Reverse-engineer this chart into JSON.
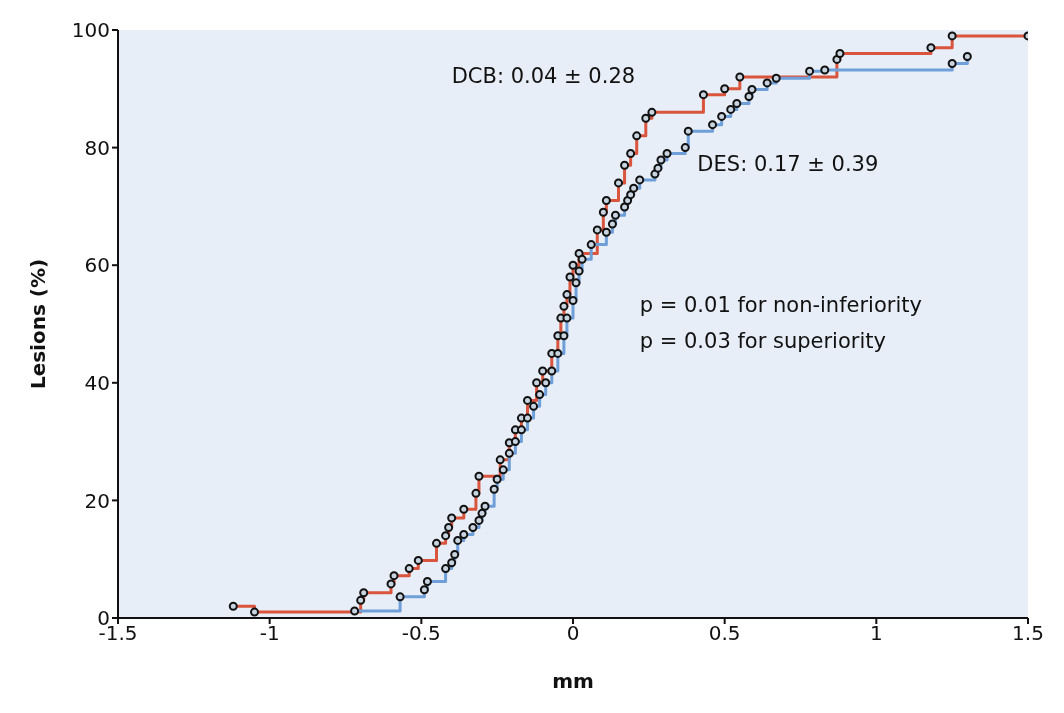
{
  "chart_data": {
    "type": "step",
    "xlabel": "mm",
    "ylabel": "Lesions (%)",
    "xlim": [
      -1.5,
      1.5
    ],
    "xticks": [
      -1.5,
      -1,
      -0.5,
      0,
      0.5,
      1,
      1.5
    ],
    "ylim": [
      0,
      100
    ],
    "yticks": [
      0,
      20,
      40,
      60,
      80,
      100
    ],
    "marker": "circle",
    "line_style": "solid",
    "annotations": [
      "DCB: 0.04 ± 0.28",
      "DES: 0.17 ± 0.39",
      "p = 0.01 for non-inferiority",
      "p = 0.03 for superiority"
    ],
    "series": [
      {
        "color": "#d9553d",
        "x": [
          -1.12,
          -1.05,
          -0.7,
          -0.69,
          -0.6,
          -0.59,
          -0.54,
          -0.51,
          -0.45,
          -0.42,
          -0.41,
          -0.4,
          -0.36,
          -0.32,
          -0.31,
          -0.24,
          -0.21,
          -0.19,
          -0.17,
          -0.15,
          -0.12,
          -0.1,
          -0.07,
          -0.05,
          -0.04,
          -0.03,
          -0.02,
          -0.01,
          0,
          0.02,
          0.08,
          0.1,
          0.11,
          0.15,
          0.17,
          0.19,
          0.21,
          0.24,
          0.26,
          0.43,
          0.5,
          0.55,
          0.87,
          0.88,
          1.18,
          1.25,
          1.5
        ],
        "values": [
          2,
          1,
          3,
          4.3,
          5.8,
          7.2,
          8.4,
          9.8,
          12.7,
          14,
          15.4,
          17,
          18.5,
          21.2,
          24.1,
          26.9,
          29.8,
          32,
          34,
          37,
          40,
          42,
          45,
          48,
          51,
          53,
          55,
          58,
          60,
          62,
          66,
          69,
          71,
          74,
          77,
          79,
          82,
          85,
          86,
          89,
          90,
          92,
          95,
          96,
          97,
          99,
          99
        ]
      },
      {
        "color": "#6f9fd8",
        "x": [
          -0.72,
          -0.57,
          -0.49,
          -0.48,
          -0.42,
          -0.4,
          -0.39,
          -0.38,
          -0.36,
          -0.33,
          -0.31,
          -0.3,
          -0.29,
          -0.26,
          -0.25,
          -0.23,
          -0.21,
          -0.19,
          -0.17,
          -0.15,
          -0.13,
          -0.11,
          -0.09,
          -0.07,
          -0.05,
          -0.03,
          -0.02,
          0,
          0.01,
          0.02,
          0.03,
          0.06,
          0.11,
          0.13,
          0.14,
          0.17,
          0.18,
          0.19,
          0.2,
          0.22,
          0.27,
          0.28,
          0.29,
          0.31,
          0.37,
          0.38,
          0.46,
          0.49,
          0.52,
          0.54,
          0.58,
          0.59,
          0.64,
          0.67,
          0.78,
          0.83,
          1.25,
          1.3
        ],
        "values": [
          1.2,
          3.6,
          4.8,
          6.2,
          8.4,
          9.4,
          10.8,
          13.2,
          14.2,
          15.4,
          16.6,
          17.8,
          19,
          21.9,
          23.6,
          25.2,
          28,
          30,
          32,
          34,
          36,
          38,
          40,
          42,
          45,
          48,
          51,
          54,
          57,
          59,
          61,
          63.5,
          65.6,
          67,
          68.5,
          69.9,
          71,
          72,
          73.1,
          74.5,
          75.5,
          76.5,
          77.9,
          79,
          80,
          82.8,
          83.9,
          85.3,
          86.5,
          87.5,
          88.7,
          89.9,
          91,
          91.8,
          93,
          93.2,
          94.3,
          95.5
        ]
      }
    ]
  }
}
